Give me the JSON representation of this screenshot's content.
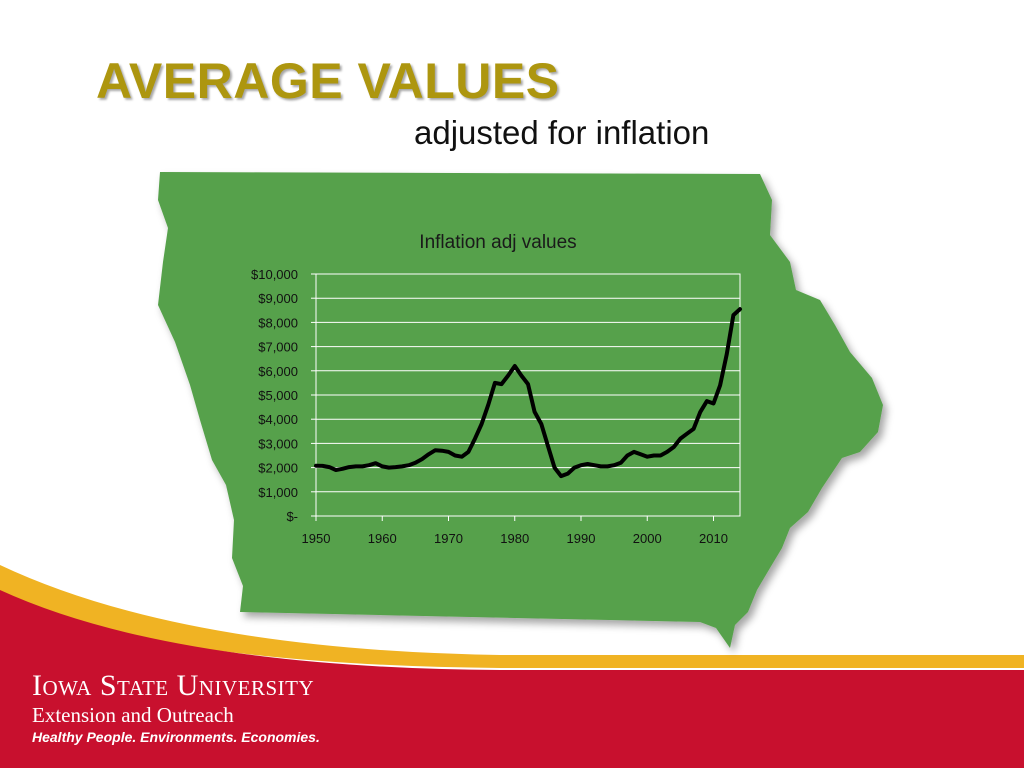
{
  "slide": {
    "title": "AVERAGE VALUES",
    "subtitle": "adjusted for inflation"
  },
  "footer": {
    "logo_main": "Iowa State University",
    "logo_sub": "Extension and Outreach",
    "tagline": "Healthy People. Environments. Economies."
  },
  "colors": {
    "title": "#ad960f",
    "map_fill": "#56a14b",
    "footer_red": "#c8102e",
    "swoosh_gold": "#f0b323",
    "line": "#000000"
  },
  "chart_data": {
    "type": "line",
    "title": "Inflation adj values",
    "xlabel": "",
    "ylabel": "",
    "xlim": [
      1950,
      2014
    ],
    "ylim": [
      0,
      10000
    ],
    "x_ticks": [
      1950,
      1960,
      1970,
      1980,
      1990,
      2000,
      2010
    ],
    "y_ticks": [
      0,
      1000,
      2000,
      3000,
      4000,
      5000,
      6000,
      7000,
      8000,
      9000,
      10000
    ],
    "y_tick_labels": [
      "$-",
      "$1,000",
      "$2,000",
      "$3,000",
      "$4,000",
      "$5,000",
      "$6,000",
      "$7,000",
      "$8,000",
      "$9,000",
      "$10,000"
    ],
    "grid": true,
    "legend": "none",
    "series": [
      {
        "x": [
          1950,
          1951,
          1952,
          1953,
          1954,
          1955,
          1956,
          1957,
          1958,
          1959,
          1960,
          1961,
          1962,
          1963,
          1964,
          1965,
          1966,
          1967,
          1968,
          1969,
          1970,
          1971,
          1972,
          1973,
          1974,
          1975,
          1976,
          1977,
          1978,
          1979,
          1980,
          1981,
          1982,
          1983,
          1984,
          1985,
          1986,
          1987,
          1988,
          1989,
          1990,
          1991,
          1992,
          1993,
          1994,
          1995,
          1996,
          1997,
          1998,
          1999,
          2000,
          2001,
          2002,
          2003,
          2004,
          2005,
          2006,
          2007,
          2008,
          2009,
          2010,
          2011,
          2012,
          2013,
          2014
        ],
        "values": [
          2080,
          2070,
          2020,
          1900,
          1950,
          2020,
          2050,
          2050,
          2100,
          2180,
          2050,
          2000,
          2020,
          2050,
          2100,
          2200,
          2350,
          2550,
          2720,
          2700,
          2650,
          2500,
          2450,
          2650,
          3200,
          3800,
          4600,
          5500,
          5450,
          5800,
          6200,
          5800,
          5450,
          4300,
          3800,
          2900,
          2000,
          1650,
          1750,
          2000,
          2100,
          2150,
          2100,
          2050,
          2050,
          2100,
          2200,
          2500,
          2650,
          2550,
          2450,
          2500,
          2500,
          2650,
          2850,
          3200,
          3400,
          3600,
          4300,
          4750,
          4650,
          5400,
          6700,
          8300,
          8550
        ]
      }
    ]
  }
}
